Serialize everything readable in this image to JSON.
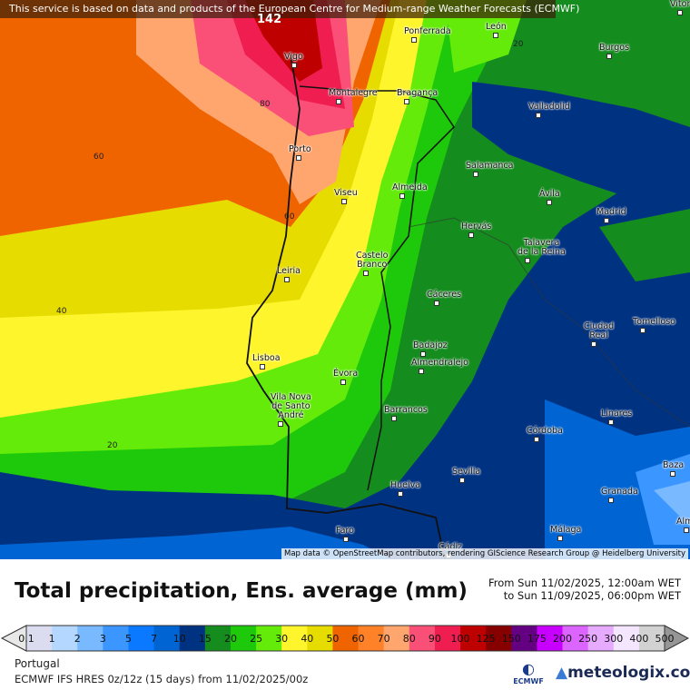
{
  "banner": "This service is based on data and products of the European Centre for Medium-range Weather Forecasts (ECMWF)",
  "attribution": "Map data © OpenStreetMap contributors, rendering GIScience Research Group @ Heidelberg University",
  "title": "Total precipitation, Ens. average (mm)",
  "period": {
    "from": "From Sun 11/02/2025, 12:00am WET",
    "to": "to Sun 11/09/2025, 06:00pm WET"
  },
  "region": "Portugal",
  "model": "ECMWF IFS HRES 0z/12z (15 days) from  11/02/2025/00z",
  "ecmwf_logo": "ECMWF",
  "brand": "meteologix.com",
  "legend": {
    "labels": [
      "0.1",
      "1",
      "2",
      "3",
      "5",
      "7",
      "10",
      "15",
      "20",
      "25",
      "30",
      "40",
      "50",
      "60",
      "70",
      "80",
      "90",
      "100",
      "125",
      "150",
      "175",
      "200",
      "250",
      "300",
      "400",
      "500"
    ],
    "colors": [
      "#dcdcf0",
      "#b4d7ff",
      "#78b9ff",
      "#3c96ff",
      "#0a78ff",
      "#0064d2",
      "#003282",
      "#148c1e",
      "#1ec80a",
      "#64eb0a",
      "#fff52d",
      "#e6dc00",
      "#f06400",
      "#ff8228",
      "#ffa56e",
      "#fa5078",
      "#f01e50",
      "#be0000",
      "#870000",
      "#640082",
      "#c800ff",
      "#dc64ff",
      "#e6aaff",
      "#f5e6ff",
      "#d2d2d2"
    ],
    "under_color": "#e8e8e8",
    "over_color": "#969696"
  },
  "cities": [
    "Vitoria-G",
    "Ponferrada",
    "León",
    "Vigo",
    "Burgos",
    "Montalegre",
    "Bragança",
    "Valladolid",
    "Porto",
    "Salamanca",
    "Viseu",
    "Almeida",
    "Ávila",
    "Madrid",
    "Hervás",
    "Talavera\nde la Reina",
    "Castelo\nBranco",
    "Leiria",
    "Cáceres",
    "Ciudad\nReal",
    "Tomelloso",
    "Badajoz",
    "Almendralejo",
    "Lisboa",
    "Évora",
    "Vila Nova\nde Santo\nAndré",
    "Barrancos",
    "Linares",
    "Córdoba",
    "Sevilla",
    "Baza",
    "Huelva",
    "Granada",
    "Faro",
    "Málaga",
    "Alm",
    "Cádiz"
  ],
  "isolines": [
    "142",
    "80",
    "60",
    "60",
    "40",
    "20",
    "20"
  ]
}
